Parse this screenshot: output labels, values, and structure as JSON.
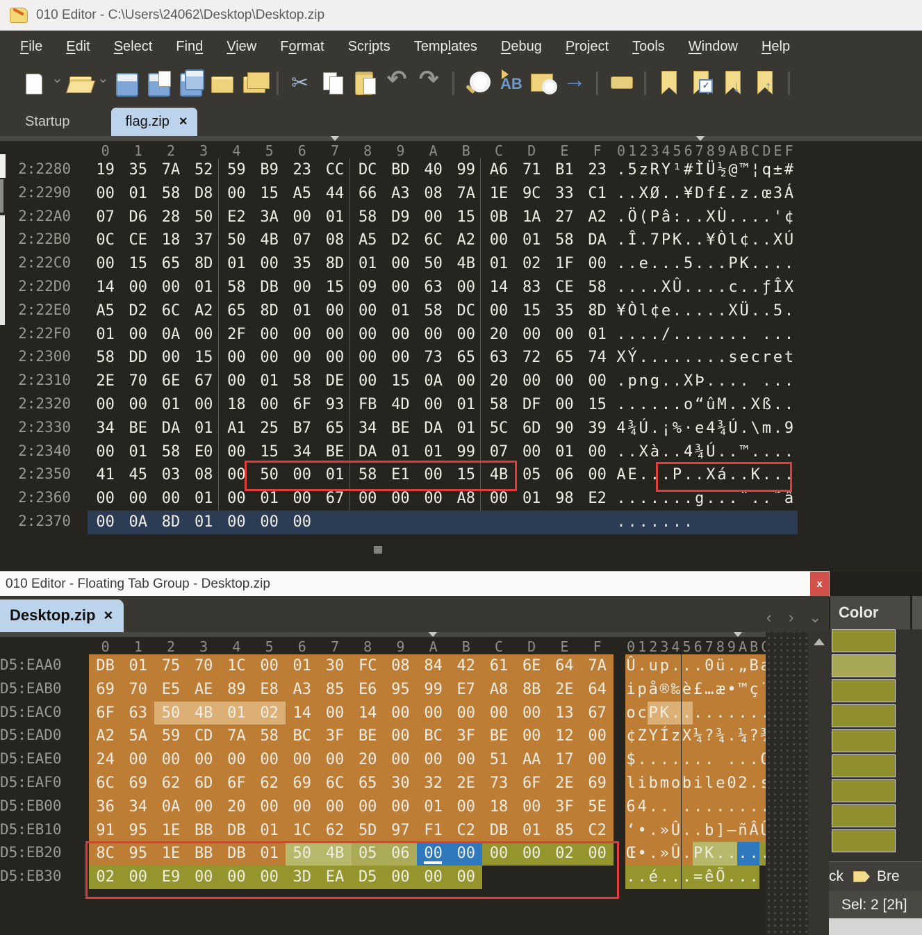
{
  "main_window": {
    "title": "010 Editor - C:\\Users\\24062\\Desktop\\Desktop.zip",
    "menu": [
      {
        "label": "File",
        "u": 0
      },
      {
        "label": "Edit",
        "u": 0
      },
      {
        "label": "Select",
        "u": 0
      },
      {
        "label": "Find",
        "u": 3
      },
      {
        "label": "View",
        "u": 0
      },
      {
        "label": "Format",
        "u": 1
      },
      {
        "label": "Scripts",
        "u": 3
      },
      {
        "label": "Templates",
        "u": 4
      },
      {
        "label": "Debug",
        "u": 0
      },
      {
        "label": "Project",
        "u": 0
      },
      {
        "label": "Tools",
        "u": 0
      },
      {
        "label": "Window",
        "u": 0
      },
      {
        "label": "Help",
        "u": 0
      }
    ],
    "toolbar": [
      "new-file",
      "caret",
      "open-file",
      "caret",
      "save",
      "save-as",
      "save-all",
      "open-folder",
      "folder-multi",
      "sep",
      "cut",
      "copy",
      "paste",
      "undo",
      "redo",
      "sep",
      "find",
      "replace",
      "find-in-files",
      "goto",
      "sep",
      "print",
      "sep",
      "bookmark-add",
      "bookmark-toggle",
      "bookmark-next",
      "bookmark-prev",
      "sep"
    ],
    "tabs": [
      {
        "label": "Startup",
        "active": false,
        "closable": false
      },
      {
        "label": "flag.zip",
        "active": true,
        "closable": true,
        "close_glyph": "×"
      }
    ],
    "hex": {
      "cols": [
        "0",
        "1",
        "2",
        "3",
        "4",
        "5",
        "6",
        "7",
        "8",
        "9",
        "A",
        "B",
        "C",
        "D",
        "E",
        "F"
      ],
      "char_header": "0123456789ABCDEF",
      "rows": [
        {
          "addr": "2:2280",
          "bytes": "19 35 7A 52 59 B9 23 CC DC BD 40 99 A6 71 B1 23",
          "chars": ".5zRY¹#ÌÜ½@™¦q±#"
        },
        {
          "addr": "2:2290",
          "bytes": "00 01 58 D8 00 15 A5 44 66 A3 08 7A 1E 9C 33 C1",
          "chars": "..XØ..¥Df£.z.œ3Á"
        },
        {
          "addr": "2:22A0",
          "bytes": "07 D6 28 50 E2 3A 00 01 58 D9 00 15 0B 1A 27 A2",
          "chars": ".Ö(Pâ:..XÙ....'¢"
        },
        {
          "addr": "2:22B0",
          "bytes": "0C CE 18 37 50 4B 07 08 A5 D2 6C A2 00 01 58 DA",
          "chars": ".Î.7PK..¥Òl¢..XÚ"
        },
        {
          "addr": "2:22C0",
          "bytes": "00 15 65 8D 01 00 35 8D 01 00 50 4B 01 02 1F 00",
          "chars": "..e...5...PK...."
        },
        {
          "addr": "2:22D0",
          "bytes": "14 00 00 01 58 DB 00 15 09 00 63 00 14 83 CE 58",
          "chars": "....XÛ....c..ƒÎX"
        },
        {
          "addr": "2:22E0",
          "bytes": "A5 D2 6C A2 65 8D 01 00 00 01 58 DC 00 15 35 8D",
          "chars": "¥Òl¢e.....XÜ..5."
        },
        {
          "addr": "2:22F0",
          "bytes": "01 00 0A 00 2F 00 00 00 00 00 00 00 20 00 00 01",
          "chars": "..../....... ..."
        },
        {
          "addr": "2:2300",
          "bytes": "58 DD 00 15 00 00 00 00 00 00 73 65 63 72 65 74",
          "chars": "XÝ........secret"
        },
        {
          "addr": "2:2310",
          "bytes": "2E 70 6E 67 00 01 58 DE 00 15 0A 00 20 00 00 00",
          "chars": ".png..XÞ.... ..."
        },
        {
          "addr": "2:2320",
          "bytes": "00 00 01 00 18 00 6F 93 FB 4D 00 01 58 DF 00 15",
          "chars": "......o“ûM..Xß.."
        },
        {
          "addr": "2:2330",
          "bytes": "34 BE DA 01 A1 25 B7 65 34 BE DA 01 5C 6D 90 39",
          "chars": "4¾Ú.¡%·e4¾Ú.\\m.9"
        },
        {
          "addr": "2:2340",
          "bytes": "00 01 58 E0 00 15 34 BE DA 01 01 99 07 00 01 00",
          "chars": "..Xà..4¾Ú..™...."
        },
        {
          "addr": "2:2350",
          "bytes": "41 45 03 08 00 50 00 01 58 E1 00 15 4B 05 06 00",
          "chars": "AE...P..Xá..K..."
        },
        {
          "addr": "2:2360",
          "bytes": "00 00 00 01 00 01 00 67 00 00 00 A8 00 01 98 E2",
          "chars": ".......g...¨..˜â"
        },
        {
          "addr": "2:2370",
          "bytes": "00 0A 8D 01 00 00 00",
          "chars": ".......",
          "selected": true
        }
      ]
    }
  },
  "floating_window": {
    "title": "010 Editor - Floating Tab Group - Desktop.zip",
    "close_glyph": "x",
    "tabs": [
      {
        "label": "Desktop.zip",
        "active": true,
        "closable": true,
        "close_glyph": "×"
      }
    ],
    "nav_icons": [
      "tab-scroll-left",
      "tab-scroll-right",
      "tab-list"
    ],
    "hex": {
      "cols": [
        "0",
        "1",
        "2",
        "3",
        "4",
        "5",
        "6",
        "7",
        "8",
        "9",
        "A",
        "B",
        "C",
        "D",
        "E",
        "F"
      ],
      "char_header": "0123456789ABCDEF",
      "rows": [
        {
          "addr": "D5:EAA0",
          "bytes": "DB 01 75 70 1C 00 01 30 FC 08 84 42 61 6E 64 7A",
          "chars": "Û.up...0ü.„Bandz",
          "bg": "orange"
        },
        {
          "addr": "D5:EAB0",
          "bytes": "69 70 E5 AE 89 E8 A3 85 E6 95 99 E7 A8 8B 2E 64",
          "chars": "ipå®‰è£…æ•™ç¨‹.d",
          "bg": "orange"
        },
        {
          "addr": "D5:EAC0",
          "bytes": "6F 63 50 4B 01 02 14 00 14 00 00 00 00 00 13 67",
          "chars": "ocPK...........g",
          "bg": "orange",
          "byte_hl": {
            "2": "lorange",
            "3": "lorange",
            "4": "lorange",
            "5": "lorange"
          },
          "char_hl": {
            "2": "lorange",
            "3": "lorange",
            "4": "lorange",
            "5": "lorange"
          }
        },
        {
          "addr": "D5:EAD0",
          "bytes": "A2 5A 59 CD 7A 58 BC 3F BE 00 BC 3F BE 00 12 00",
          "chars": "¢ZYÍzX¼?¾.¼?¾...",
          "bg": "orange"
        },
        {
          "addr": "D5:EAE0",
          "bytes": "24 00 00 00 00 00 00 00 20 00 00 00 51 AA 17 00",
          "chars": "$....... ...Qª..",
          "bg": "orange"
        },
        {
          "addr": "D5:EAF0",
          "bytes": "6C 69 62 6D 6F 62 69 6C 65 30 32 2E 73 6F 2E 69",
          "chars": "libmobile02.so.i",
          "bg": "orange"
        },
        {
          "addr": "D5:EB00",
          "bytes": "36 34 0A 00 20 00 00 00 00 00 01 00 18 00 3F 5E",
          "chars": "64.. .........?^",
          "bg": "orange"
        },
        {
          "addr": "D5:EB10",
          "bytes": "91 95 1E BB DB 01 1C 62 5D 97 F1 C2 DB 01 85 C2",
          "chars": "‘•.»Û..b]—ñÂÛ.…Â",
          "bg": "orange"
        },
        {
          "addr": "D5:EB20",
          "bytes": "8C 95 1E BB DB 01 50 4B 05 06 00 00 00 00 02 00",
          "chars": "Œ•.»Û.PK........",
          "bg": "orange",
          "byte_hl": {
            "6": "lolive",
            "7": "lolive",
            "8": "lolive2",
            "9": "lolive2",
            "10": "blue caret-under",
            "11": "blue",
            "12": "olive",
            "13": "olive",
            "14": "olive",
            "15": "olive"
          },
          "char_hl": {
            "6": "lolive",
            "7": "lolive",
            "8": "lolive",
            "9": "lolive",
            "10": "blue",
            "11": "blue",
            "12": "olive",
            "13": "olive",
            "14": "olive",
            "15": "olive"
          }
        },
        {
          "addr": "D5:EB30",
          "bytes": "02 00 E9 00 00 00 3D EA D5 00 00 00",
          "chars": "..é...=êÕ...",
          "bg": "olive"
        }
      ]
    }
  },
  "template_results": {
    "color_header": "Color",
    "swatches": [
      "#8f902d",
      "#a6a754",
      "#8f902d",
      "#8f902d",
      "#8f902d",
      "#8f902d",
      "#8f902d",
      "#8f902d",
      "#8f902d"
    ]
  },
  "status_bar": {
    "left_partial": "ck",
    "breakpoint_label": "Bre",
    "selection": "Sel: 2 [2h]"
  }
}
